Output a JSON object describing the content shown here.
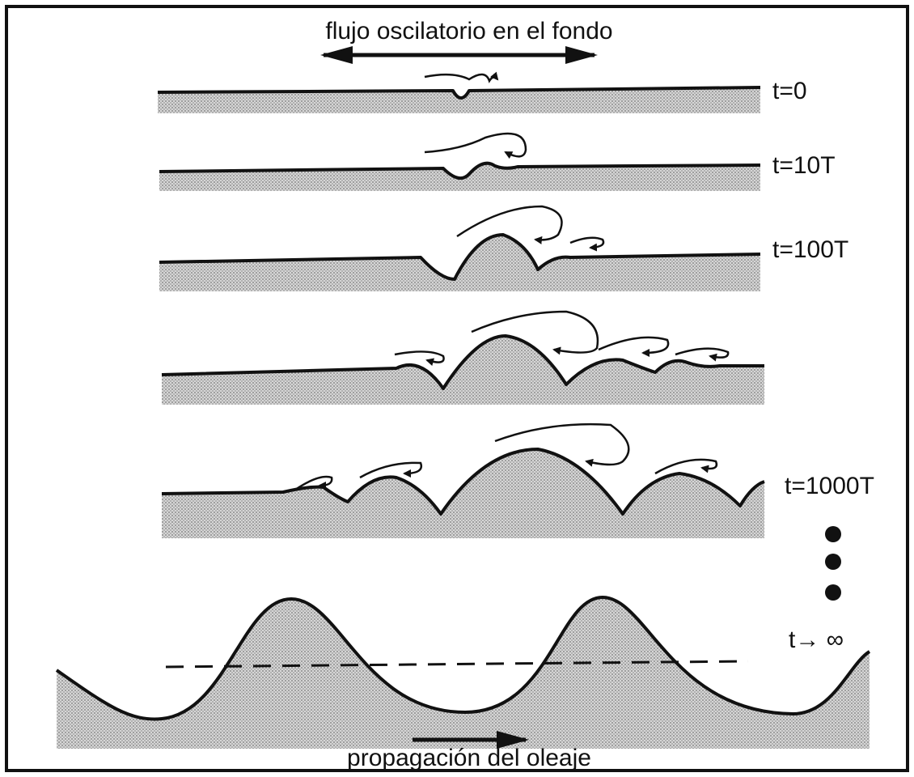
{
  "title": "flujo oscilatorio en el fondo",
  "stages": [
    {
      "label": "t=0"
    },
    {
      "label": "t=10T"
    },
    {
      "label": "t=100T"
    },
    {
      "label": "t=1000T"
    },
    {
      "label": "t→ ∞"
    }
  ],
  "footer": "propagación del oleaje"
}
